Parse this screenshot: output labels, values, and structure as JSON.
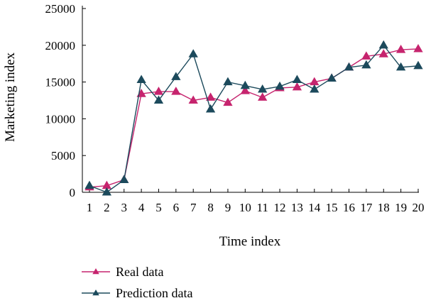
{
  "chart_data": {
    "type": "line",
    "xlabel": "Time index",
    "ylabel": "Marketing index",
    "x": [
      1,
      2,
      3,
      4,
      5,
      6,
      7,
      8,
      9,
      10,
      11,
      12,
      13,
      14,
      15,
      16,
      17,
      18,
      19,
      20
    ],
    "x_ticks": [
      1,
      2,
      3,
      4,
      5,
      6,
      7,
      8,
      9,
      10,
      11,
      12,
      13,
      14,
      15,
      16,
      17,
      18,
      19,
      20
    ],
    "y_ticks": [
      0,
      5000,
      10000,
      15000,
      20000,
      25000
    ],
    "xlim": [
      1,
      20
    ],
    "ylim": [
      0,
      25000
    ],
    "grid": false,
    "legend_position": "bottom-left",
    "series": [
      {
        "name": "Real data",
        "color": "#c6246e",
        "marker": "triangle",
        "values": [
          700,
          900,
          1700,
          13400,
          13700,
          13700,
          12500,
          12900,
          12200,
          13800,
          12900,
          14200,
          14300,
          15000,
          15500,
          17000,
          18500,
          18800,
          19400,
          19500
        ]
      },
      {
        "name": "Prediction data",
        "color": "#1c4a5c",
        "marker": "triangle",
        "values": [
          900,
          0,
          1700,
          15300,
          12500,
          15700,
          18800,
          11300,
          15000,
          14500,
          14000,
          14400,
          15300,
          14000,
          15500,
          17000,
          17300,
          20000,
          17000,
          17200
        ]
      }
    ]
  }
}
